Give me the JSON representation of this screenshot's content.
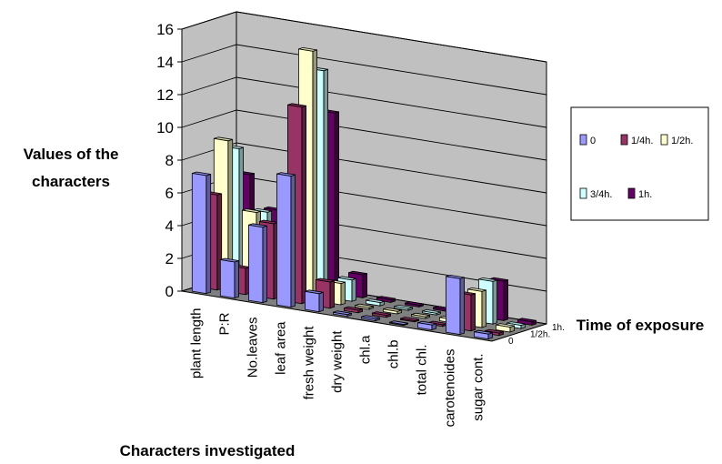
{
  "chart_data": {
    "type": "bar",
    "subtype": "3d-clustered-depth",
    "title": "",
    "ylabel_lines": [
      "Values of the",
      "characters"
    ],
    "xlabel": "Characters investigated",
    "zlabel": "Time of exposure",
    "ylim": [
      0,
      16
    ],
    "yticks": [
      "0",
      "2",
      "4",
      "6",
      "8",
      "10",
      "12",
      "14",
      "16"
    ],
    "depth_tick_labels": [
      "0",
      "1/2h.",
      "1h."
    ],
    "categories": [
      "plant length",
      "P:R",
      "No.leaves",
      "leaf area",
      "fresh weight",
      "dry weight",
      "chl.a",
      "chl.b",
      "total chl.",
      "carotenoides",
      "sugar cont."
    ],
    "series": [
      {
        "name": "0",
        "color": "#9999ff",
        "values": [
          7.2,
          2.2,
          4.6,
          8.0,
          1.1,
          0.1,
          0.1,
          0.05,
          0.3,
          3.4,
          0.3
        ]
      },
      {
        "name": "1/4h.",
        "color": "#993366",
        "values": [
          5.8,
          1.6,
          4.6,
          12.0,
          1.6,
          0.15,
          0.12,
          0.07,
          0.1,
          2.2,
          0.15
        ]
      },
      {
        "name": "1/2h.",
        "color": "#ffffcc",
        "values": [
          8.9,
          4.8,
          4.0,
          15.2,
          1.3,
          0.1,
          0.15,
          0.1,
          0.2,
          2.2,
          0.3
        ]
      },
      {
        "name": "3/4h.",
        "color": "#ccffff",
        "values": [
          8.2,
          4.6,
          3.6,
          13.8,
          1.3,
          0.2,
          0.1,
          0.1,
          0.1,
          2.6,
          0.2
        ]
      },
      {
        "name": "1h.",
        "color": "#660066",
        "values": [
          6.4,
          4.5,
          4.3,
          11.0,
          1.4,
          0.15,
          0.1,
          0.1,
          0.1,
          2.4,
          0.2
        ]
      }
    ],
    "legend": {
      "position": "right",
      "rows": [
        [
          "0",
          "1/4h.",
          "1/2h."
        ],
        [
          "3/4h.",
          "1h."
        ]
      ]
    },
    "grid": true
  }
}
